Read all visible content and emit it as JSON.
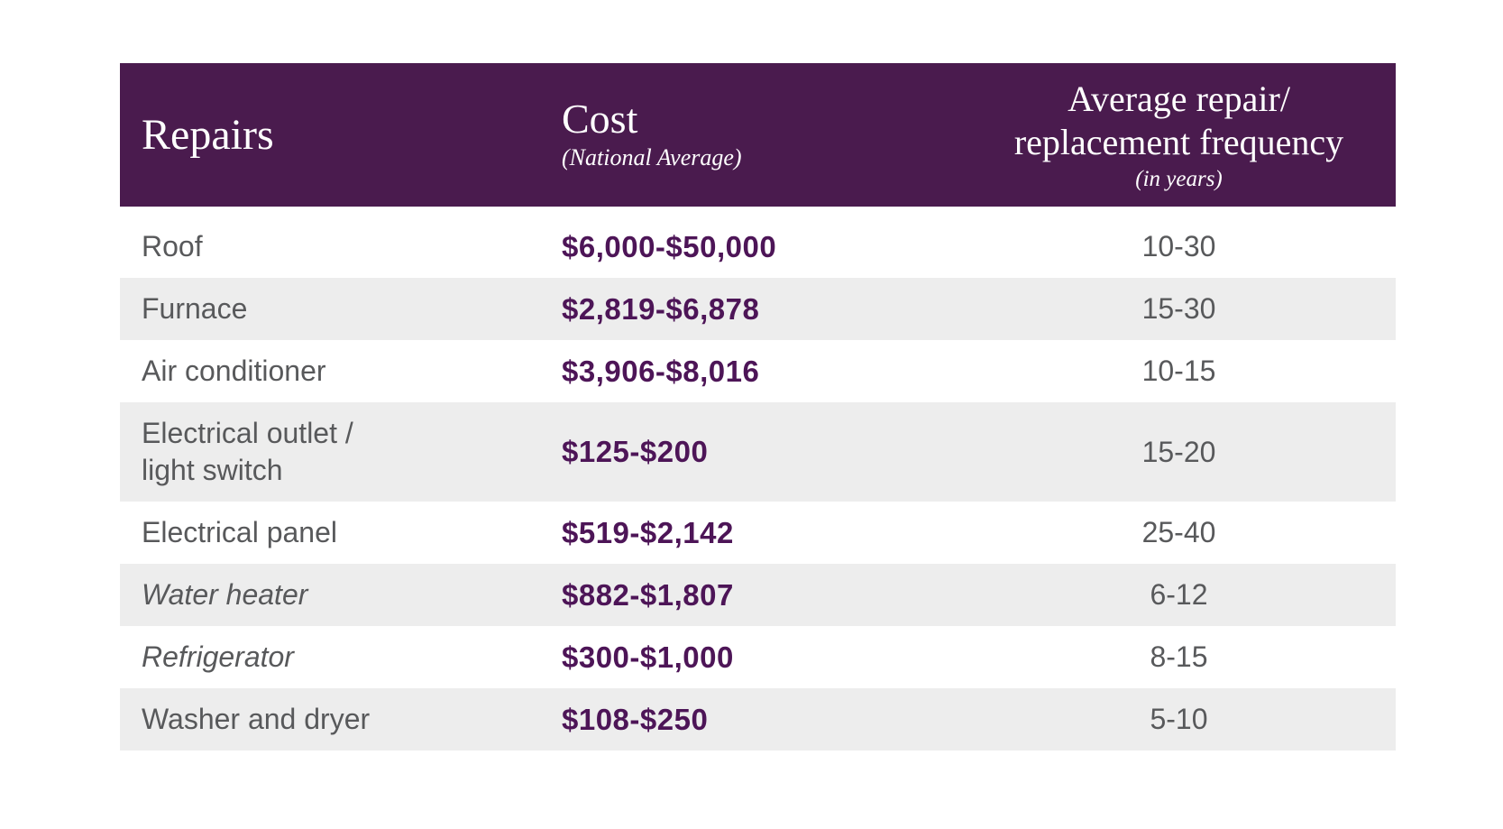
{
  "chart_data": {
    "type": "table",
    "header": {
      "repairs_label": "Repairs",
      "cost_label": "Cost",
      "cost_sublabel": "(National Average)",
      "frequency_label_line1": "Average repair/",
      "frequency_label_line2": "replacement frequency",
      "frequency_sublabel": "(in years)"
    },
    "rows": [
      {
        "repair": "Roof",
        "cost": "$6,000-$50,000",
        "frequency_years": "10-30",
        "italic": false
      },
      {
        "repair": "Furnace",
        "cost": "$2,819-$6,878",
        "frequency_years": "15-30",
        "italic": false
      },
      {
        "repair": "Air conditioner",
        "cost": "$3,906-$8,016",
        "frequency_years": "10-15",
        "italic": false
      },
      {
        "repair": "Electrical outlet /",
        "repair_line2": "light switch",
        "cost": "$125-$200",
        "frequency_years": "15-20",
        "italic": false
      },
      {
        "repair": "Electrical panel",
        "cost": "$519-$2,142",
        "frequency_years": "25-40",
        "italic": false
      },
      {
        "repair": "Water heater",
        "cost": "$882-$1,807",
        "frequency_years": "6-12",
        "italic": true
      },
      {
        "repair": "Refrigerator",
        "cost": "$300-$1,000",
        "frequency_years": "8-15",
        "italic": true
      },
      {
        "repair": "Washer and dryer",
        "cost": "$108-$250",
        "frequency_years": "5-10",
        "italic": false
      }
    ],
    "colors": {
      "header_bg": "#4A1B4E",
      "header_text": "#FFFFFF",
      "cost_value_text": "#4D1557",
      "body_text": "#58595B",
      "row_alt_bg": "#EDEDED",
      "page_bg": "#FFFFFF"
    },
    "layout_hints": {
      "columns_align": [
        "left",
        "left",
        "center"
      ],
      "zebra_striping": "even rows shaded"
    }
  }
}
